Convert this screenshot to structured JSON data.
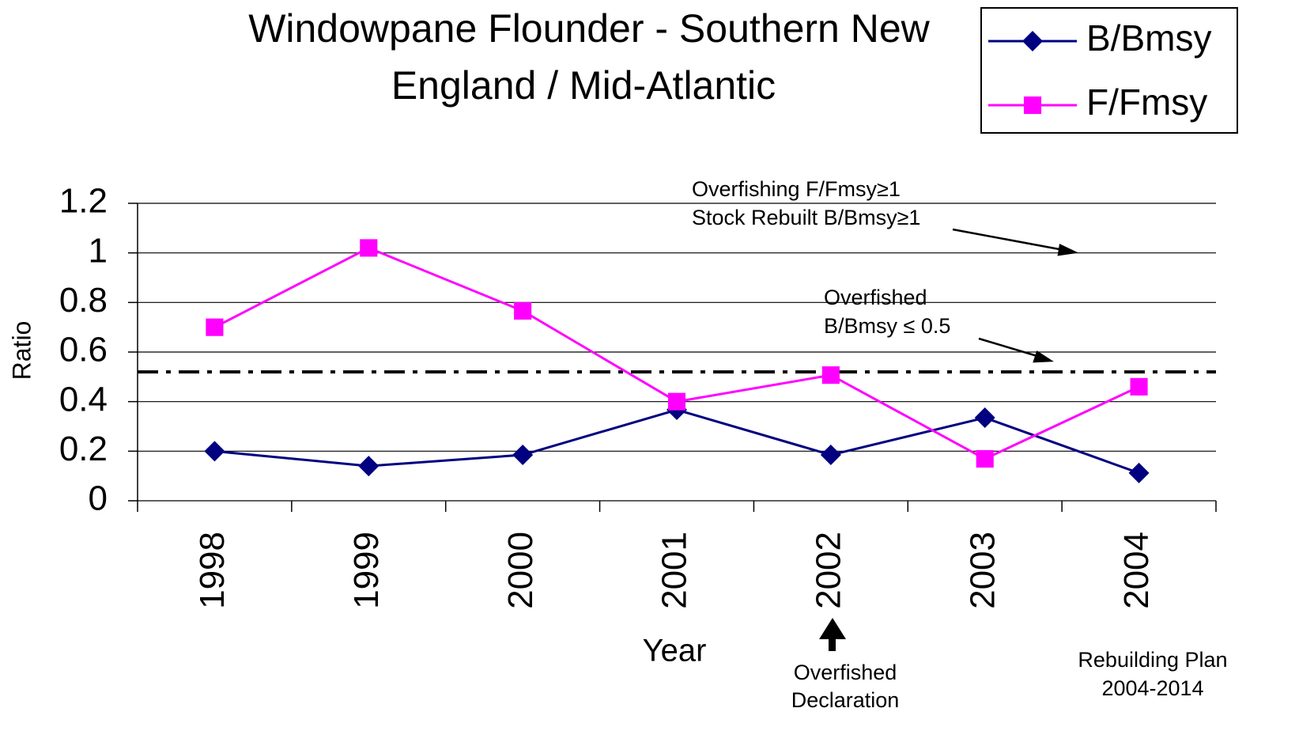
{
  "chart_data": {
    "type": "line",
    "title": [
      "Windowpane Flounder - Southern New",
      "England / Mid-Atlantic"
    ],
    "x_label": "Year",
    "y_label": "Ratio",
    "categories": [
      "1998",
      "1999",
      "2000",
      "2001",
      "2002",
      "2003",
      "2004"
    ],
    "series": [
      {
        "name": "B/Bmsy",
        "color": "#000080",
        "marker": "diamond",
        "values": [
          0.2,
          0.14,
          0.185,
          0.367,
          0.185,
          0.335,
          0.112
        ]
      },
      {
        "name": "F/Fmsy",
        "color": "#ff00ff",
        "marker": "square",
        "values": [
          0.7,
          1.02,
          0.766,
          0.4,
          0.507,
          0.169,
          0.46
        ]
      }
    ],
    "reference_line": 0.52,
    "ylim": [
      0,
      1.2
    ],
    "yticks": [
      0,
      0.2,
      0.4,
      0.6,
      0.8,
      1,
      1.2
    ],
    "grid": true,
    "legend": "top-right",
    "annotations": {
      "overfishing": [
        "Overfishing F/Fmsy≥1",
        "Stock Rebuilt B/Bmsy≥1"
      ],
      "overfished": [
        "Overfished",
        "B/Bmsy ≤ 0.5"
      ],
      "declaration": [
        "Overfished",
        "Declaration"
      ],
      "rebuilding": [
        "Rebuilding Plan",
        "2004-2014"
      ]
    }
  }
}
